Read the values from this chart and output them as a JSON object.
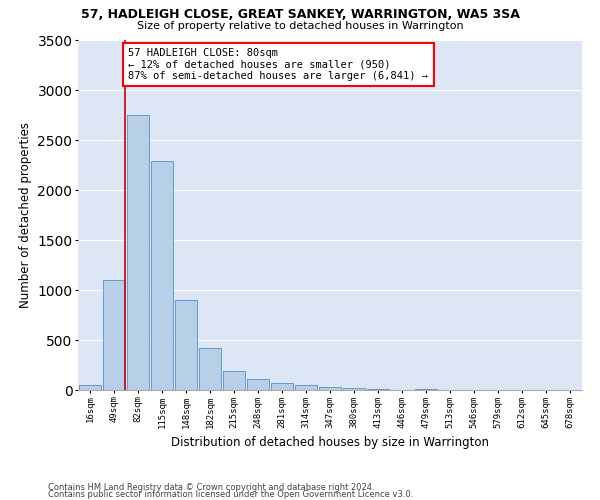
{
  "title1": "57, HADLEIGH CLOSE, GREAT SANKEY, WARRINGTON, WA5 3SA",
  "title2": "Size of property relative to detached houses in Warrington",
  "xlabel": "Distribution of detached houses by size in Warrington",
  "ylabel": "Number of detached properties",
  "footnote1": "Contains HM Land Registry data © Crown copyright and database right 2024.",
  "footnote2": "Contains public sector information licensed under the Open Government Licence v3.0.",
  "annotation_title": "57 HADLEIGH CLOSE: 80sqm",
  "annotation_line2": "← 12% of detached houses are smaller (950)",
  "annotation_line3": "87% of semi-detached houses are larger (6,841) →",
  "bar_color": "#b8cfe8",
  "bar_edge_color": "#6699cc",
  "marker_color": "#cc0000",
  "background_color": "#dce6f5",
  "categories": [
    "16sqm",
    "49sqm",
    "82sqm",
    "115sqm",
    "148sqm",
    "182sqm",
    "215sqm",
    "248sqm",
    "281sqm",
    "314sqm",
    "347sqm",
    "380sqm",
    "413sqm",
    "446sqm",
    "479sqm",
    "513sqm",
    "546sqm",
    "579sqm",
    "612sqm",
    "645sqm",
    "678sqm"
  ],
  "values": [
    50,
    1100,
    2750,
    2290,
    900,
    420,
    195,
    115,
    75,
    55,
    30,
    20,
    15,
    5,
    10,
    2,
    1,
    0,
    0,
    0,
    0
  ],
  "ylim": [
    0,
    3500
  ],
  "yticks": [
    0,
    500,
    1000,
    1500,
    2000,
    2500,
    3000,
    3500
  ],
  "marker_bar_index": 1,
  "figsize": [
    6.0,
    5.0
  ],
  "dpi": 100
}
